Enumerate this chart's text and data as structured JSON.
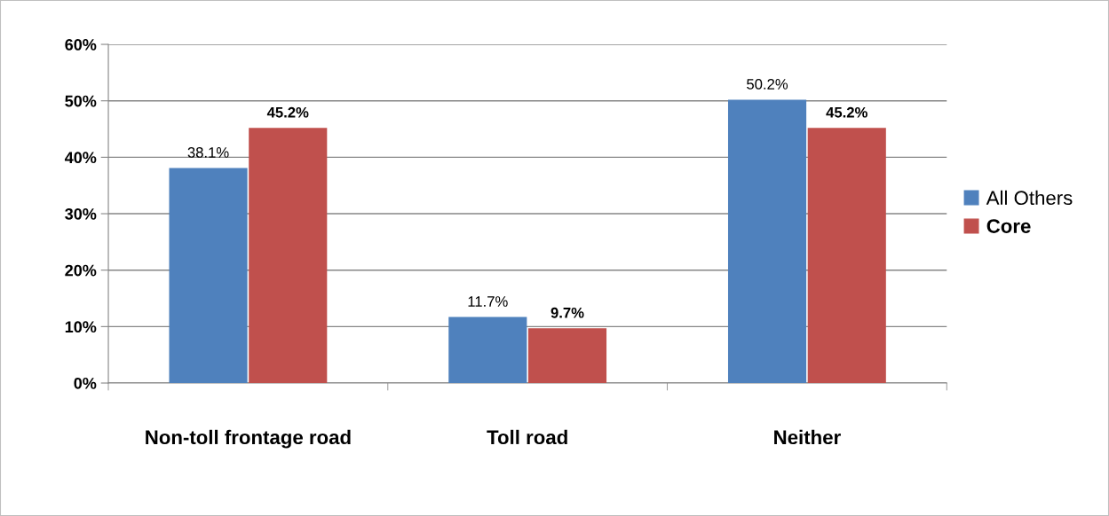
{
  "chart_data": {
    "type": "bar",
    "categories": [
      "Non-toll frontage road",
      "Toll road",
      "Neither"
    ],
    "series": [
      {
        "name": "All Others",
        "color": "#4f81bd",
        "values": [
          38.1,
          11.7,
          50.2
        ],
        "value_labels": [
          "38.1%",
          "11.7%",
          "50.2%"
        ]
      },
      {
        "name": "Core",
        "color": "#c0504d",
        "values": [
          45.2,
          9.7,
          45.2
        ],
        "value_labels": [
          "45.2%",
          "9.7%",
          "45.2%"
        ]
      }
    ],
    "ylim": [
      0,
      60
    ],
    "yticks": [
      {
        "value": 0,
        "label": "0%"
      },
      {
        "value": 10,
        "label": "10%"
      },
      {
        "value": 20,
        "label": "20%"
      },
      {
        "value": 30,
        "label": "30%"
      },
      {
        "value": 40,
        "label": "40%"
      },
      {
        "value": 50,
        "label": "50%"
      },
      {
        "value": 60,
        "label": "60%"
      }
    ],
    "grid": "y",
    "legend": "right"
  }
}
